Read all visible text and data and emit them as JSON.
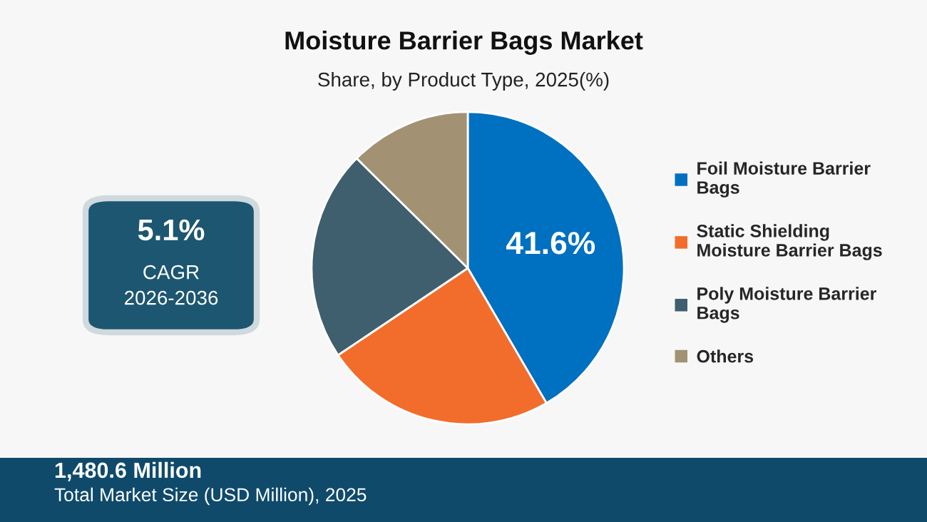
{
  "chart_data": {
    "type": "pie",
    "title": "Moisture Barrier Bags Market",
    "subtitle": "Share, by Product Type, 2025(%)",
    "categories": [
      "Foil Moisture Barrier Bags",
      "Static Shielding Moisture Barrier Bags",
      "Poly Moisture Barrier Bags",
      "Others"
    ],
    "values": [
      41.6,
      24.0,
      21.8,
      12.6
    ],
    "colors": [
      "#0070c0",
      "#f26d2c",
      "#3f5f6e",
      "#a29273"
    ],
    "value_labels": [
      "41.6%",
      null,
      null,
      null
    ],
    "legend": "right",
    "annotations": [
      "5.1%",
      "CAGR",
      "2026-2036",
      "1,480.6 Million",
      "Total Market Size (USD Million), 2025"
    ]
  }
}
